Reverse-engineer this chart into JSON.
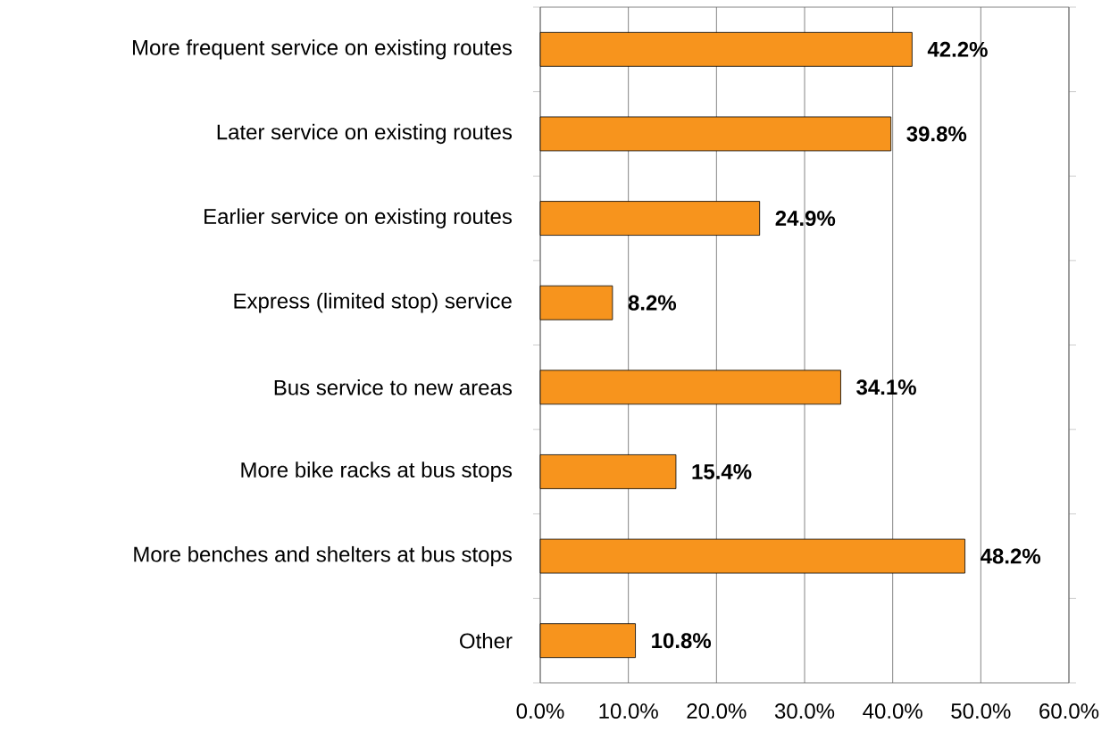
{
  "chart_data": {
    "type": "bar",
    "orientation": "horizontal",
    "categories": [
      "More frequent service on existing routes",
      "Later service on existing routes",
      "Earlier service on existing routes",
      "Express (limited stop) service",
      "Bus service to new areas",
      "More bike racks at bus stops",
      "More benches and shelters at bus stops",
      "Other"
    ],
    "values": [
      42.2,
      39.8,
      24.9,
      8.2,
      34.1,
      15.4,
      48.2,
      10.8
    ],
    "value_labels": [
      "42.2%",
      "39.8%",
      "24.9%",
      "8.2%",
      "34.1%",
      "15.4%",
      "48.2%",
      "10.8%"
    ],
    "color": "#f7941d",
    "xlim": [
      0,
      60
    ],
    "xticks": [
      {
        "value": 0,
        "label": "0.0%"
      },
      {
        "value": 10,
        "label": "10.0%"
      },
      {
        "value": 20,
        "label": "20.0%"
      },
      {
        "value": 30,
        "label": "30.0%"
      },
      {
        "value": 40,
        "label": "40.0%"
      },
      {
        "value": 50,
        "label": "50.0%"
      },
      {
        "value": 60,
        "label": "60.0%"
      }
    ],
    "grid": "x"
  }
}
